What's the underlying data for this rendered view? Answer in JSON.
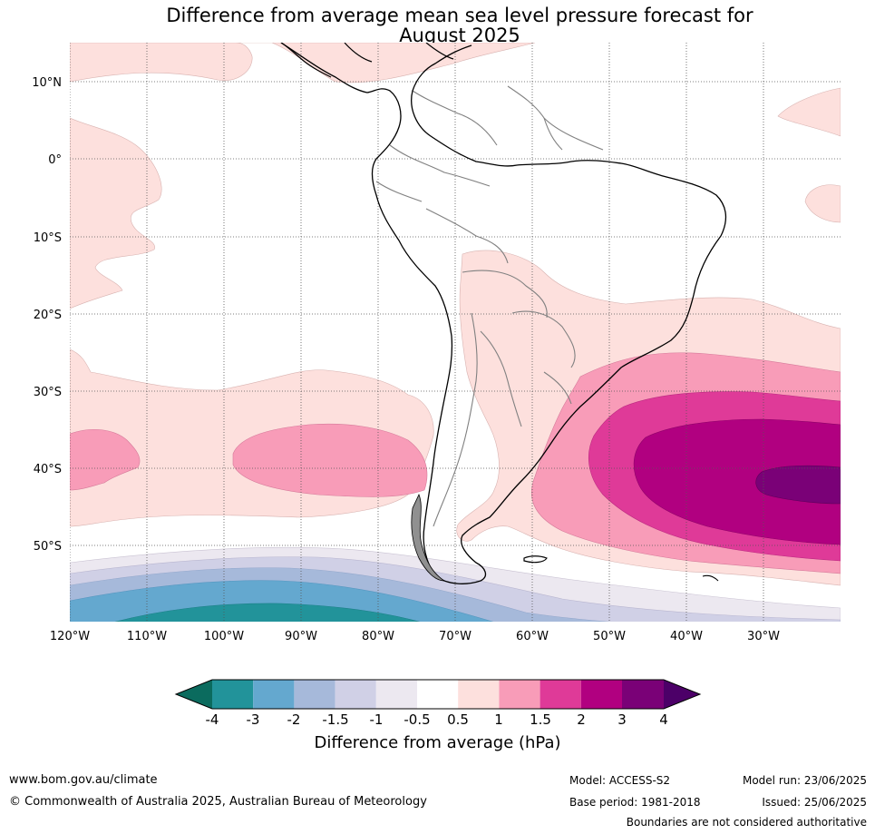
{
  "title_line1": "Difference from average mean sea level pressure forecast for",
  "title_line2": "August 2025",
  "lat_labels": [
    "10°N",
    "0°",
    "10°S",
    "20°S",
    "30°S",
    "40°S",
    "50°S"
  ],
  "lon_labels": [
    "120°W",
    "110°W",
    "100°W",
    "90°W",
    "80°W",
    "70°W",
    "60°W",
    "50°W",
    "40°W",
    "30°W"
  ],
  "colorbar": {
    "title": "Difference from average (hPa)",
    "tick_labels": [
      "-4",
      "-3",
      "-2",
      "-1.5",
      "-1",
      "-0.5",
      "0.5",
      "1",
      "1.5",
      "2",
      "3",
      "4"
    ],
    "colors": [
      "#0b6b5e",
      "#22939a",
      "#64a8cf",
      "#a6b9da",
      "#d0d0e6",
      "#ece8f0",
      "#ffffff",
      "#fde0dd",
      "#f89cb8",
      "#df3a98",
      "#b10080",
      "#7a0177",
      "#4c0068"
    ]
  },
  "footer": {
    "website": "www.bom.gov.au/climate",
    "copyright": "© Commonwealth of Australia 2025, Australian Bureau of Meteorology",
    "model": "Model: ACCESS-S2",
    "base_period": "Base period: 1981-2018",
    "model_run": "Model run: 23/06/2025",
    "issued": "Issued: 25/06/2025",
    "disclaimer": "Boundaries are not considered authoritative"
  },
  "map_data": {
    "extent": {
      "lon_min": -120,
      "lon_max": -20,
      "lat_min": -60,
      "lat_max": 15
    },
    "gridlines": true,
    "anomaly_regions": [
      {
        "name": "south-atlantic-high",
        "max_category": "3 to 4 hPa",
        "center": [
          -33,
          -42
        ]
      },
      {
        "name": "southeast-pacific-positive",
        "max_category": "1 to 1.5 hPa",
        "center": [
          -95,
          -40
        ]
      },
      {
        "name": "southern-ocean-negative",
        "min_category": "-4 to -3 hPa",
        "center": [
          -90,
          -60
        ]
      }
    ]
  }
}
